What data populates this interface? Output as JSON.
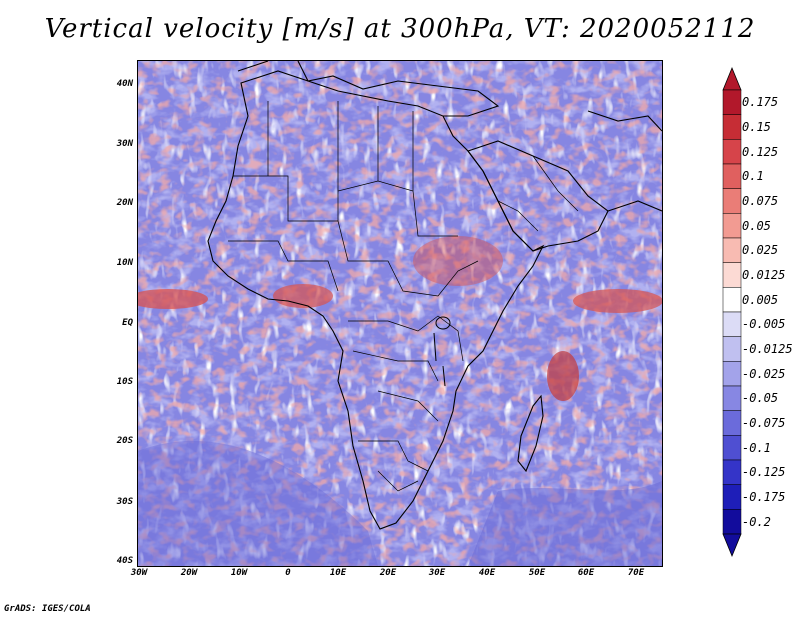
{
  "title": "Vertical velocity [m/s] at 300hPa, VT: 2020052112",
  "footer": "GrADS: IGES/COLA",
  "axes": {
    "lat_labels": [
      "40N",
      "30N",
      "20N",
      "10N",
      "EQ",
      "10S",
      "20S",
      "30S",
      "40S"
    ],
    "lon_labels": [
      "30W",
      "20W",
      "10W",
      "0",
      "10E",
      "20E",
      "30E",
      "40E",
      "50E",
      "60E",
      "70E"
    ]
  },
  "colorbar": {
    "labels": [
      "0.175",
      "0.15",
      "0.125",
      "0.1",
      "0.075",
      "0.05",
      "0.025",
      "0.0125",
      "0.005",
      "-0.005",
      "-0.0125",
      "-0.025",
      "-0.05",
      "-0.075",
      "-0.1",
      "-0.125",
      "-0.175",
      "-0.2"
    ],
    "colors": [
      "#b2182b",
      "#c62d35",
      "#d6444a",
      "#e0605f",
      "#ea7d77",
      "#f29b92",
      "#f8bbb2",
      "#fcdad4",
      "#ffffff",
      "#dcdcf6",
      "#c0c0f0",
      "#a3a3ea",
      "#8787e3",
      "#6b6bdb",
      "#4f4fd2",
      "#3434c8",
      "#1e1eb8",
      "#120c9c"
    ]
  },
  "map": {
    "region": "Africa",
    "field": "300hPa vertical velocity",
    "colors": {
      "ocean_base": "#8a8ae6",
      "positive": "#e06a6a",
      "negative": "#5a5ad8",
      "border": "#000000"
    }
  }
}
